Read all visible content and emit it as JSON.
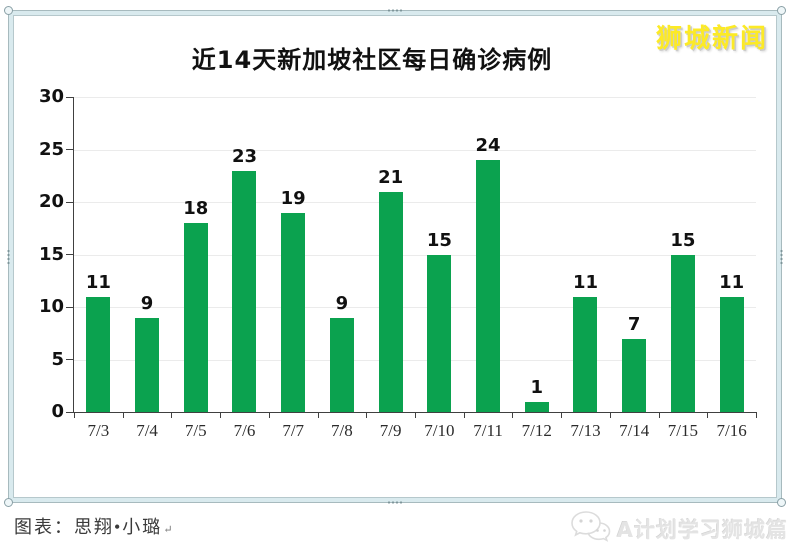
{
  "page": {
    "brand": "狮城新闻",
    "caption_label": "图表：",
    "caption_author": "思翔•小璐",
    "paragraph_mark": "↵",
    "watermark_text": "A计划学习狮城篇"
  },
  "icons": {
    "watermark_icon": "wechat-icon",
    "handles": "image-resize-handles"
  },
  "colors": {
    "bar": "#0BA24F",
    "brand_yellow": "#FCEA26",
    "frame_band": "#D9EAEE",
    "gridline": "#EBEBEB",
    "axis": "#404040",
    "watermark_gray": "#E4E4E4"
  },
  "chart_data": {
    "type": "bar",
    "title": "近14天新加坡社区每日确诊病例",
    "categories": [
      "7/3",
      "7/4",
      "7/5",
      "7/6",
      "7/7",
      "7/8",
      "7/9",
      "7/10",
      "7/11",
      "7/12",
      "7/13",
      "7/14",
      "7/15",
      "7/16"
    ],
    "values": [
      11,
      9,
      18,
      23,
      19,
      9,
      21,
      15,
      24,
      1,
      11,
      7,
      15,
      11
    ],
    "xlabel": "",
    "ylabel": "",
    "ylim": [
      0,
      30
    ],
    "yticks": [
      0,
      5,
      10,
      15,
      20,
      25,
      30
    ],
    "grid": true,
    "legend": "none",
    "bar_color": "#0BA24F"
  }
}
